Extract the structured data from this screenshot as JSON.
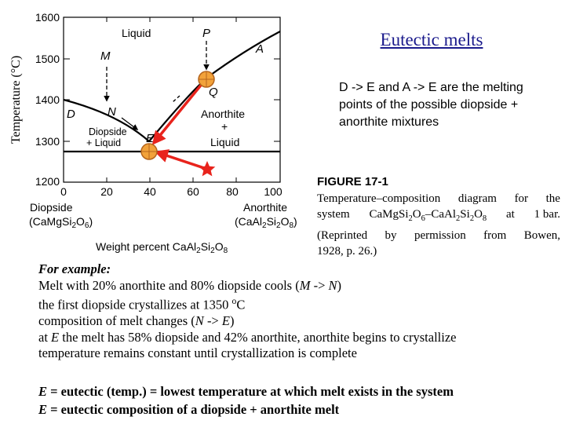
{
  "title": "Eutectic melts",
  "side_note": "D -> E and A -> E are the melting points of the possible diopside + anorthite mixtures",
  "figure": {
    "caption_label": "FIGURE 17-1",
    "caption_lines": [
      "Temperature–composition diagram for the",
      "system CaMgSi2O6–CaAl2Si2O8 at 1 bar.",
      "(Reprinted by permission from Bowen,",
      "1928, p. 26.)"
    ],
    "y_axis_label": "Temperature (°C)",
    "y_ticks": [
      "1600",
      "1500",
      "1400",
      "1300",
      "1200"
    ],
    "x_ticks": [
      "0",
      "20",
      "40",
      "60",
      "80",
      "100"
    ],
    "x_axis_label": "Weight percent CaAl2Si2O8",
    "left_end_member": "Diopside",
    "left_formula": "(CaMgSi2O6)",
    "right_end_member": "Anorthite",
    "right_formula": "(CaAl2Si2O8)",
    "field_labels": {
      "liquid": "Liquid",
      "diopside_liquid_1": "Diopside",
      "diopside_liquid_2": "+ Liquid",
      "anorthite_liquid_1": "Anorthite",
      "anorthite_liquid_2": "+",
      "anorthite_liquid_3": "Liquid"
    },
    "point_labels": {
      "M": "M",
      "N": "N",
      "D": "D",
      "E": "E",
      "P": "P",
      "A": "A",
      "Q": "Q"
    },
    "colors": {
      "arrows": "#e8231c",
      "marker": "#f2a23a",
      "marker_outline": "#b5651d",
      "star": "#e8231c"
    }
  },
  "example": {
    "heading": "For example:",
    "line1_a": "Melt with 20% anorthite and 80% diopside cools (",
    "line1_m": "M",
    "line1_arrow": " -> ",
    "line1_n": "N",
    "line1_b": ")",
    "line2_a": "the first diopside crystallizes at 1350 ",
    "line2_sup": "o",
    "line2_b": "C",
    "line3_a": "composition of melt changes (",
    "line3_n": "N",
    "line3_arrow": " -> ",
    "line3_e": "E",
    "line3_b": ")",
    "line4_a": "at ",
    "line4_e": "E",
    "line4_b": " the melt has 58% diopside and 42% anorthite, anorthite begins to crystallize",
    "line5": "temperature remains constant until crystallization is complete"
  },
  "definitions": {
    "line1_e": "E",
    "line1_text": " = eutectic (temp.) = lowest temperature at which melt exists in the system",
    "line2_e": "E",
    "line2_text": " = eutectic composition of a diopside + anorthite melt"
  }
}
